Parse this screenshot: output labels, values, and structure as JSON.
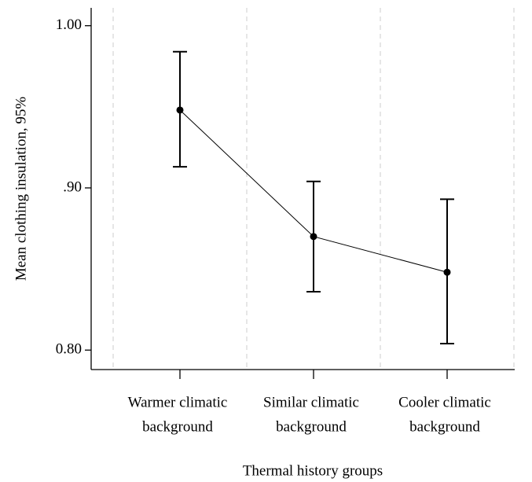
{
  "chart_data": {
    "type": "line",
    "x_label": "Thermal history groups",
    "y_label": "Mean clothing insulation, 95%",
    "categories": [
      [
        "Warmer climatic",
        "background"
      ],
      [
        "Similar climatic",
        "background"
      ],
      [
        "Cooler climatic",
        "background"
      ]
    ],
    "values": [
      0.948,
      0.87,
      0.848
    ],
    "lower": [
      0.913,
      0.836,
      0.804
    ],
    "upper": [
      0.984,
      0.904,
      0.893
    ],
    "color": "#000000",
    "ylim": [
      0.788,
      1.011
    ],
    "yticks": [
      {
        "value": 0.8,
        "label": "0.80"
      },
      {
        "value": 0.9,
        "label": ".90"
      },
      {
        "value": 1.0,
        "label": "1.00"
      }
    ],
    "grid": true
  }
}
